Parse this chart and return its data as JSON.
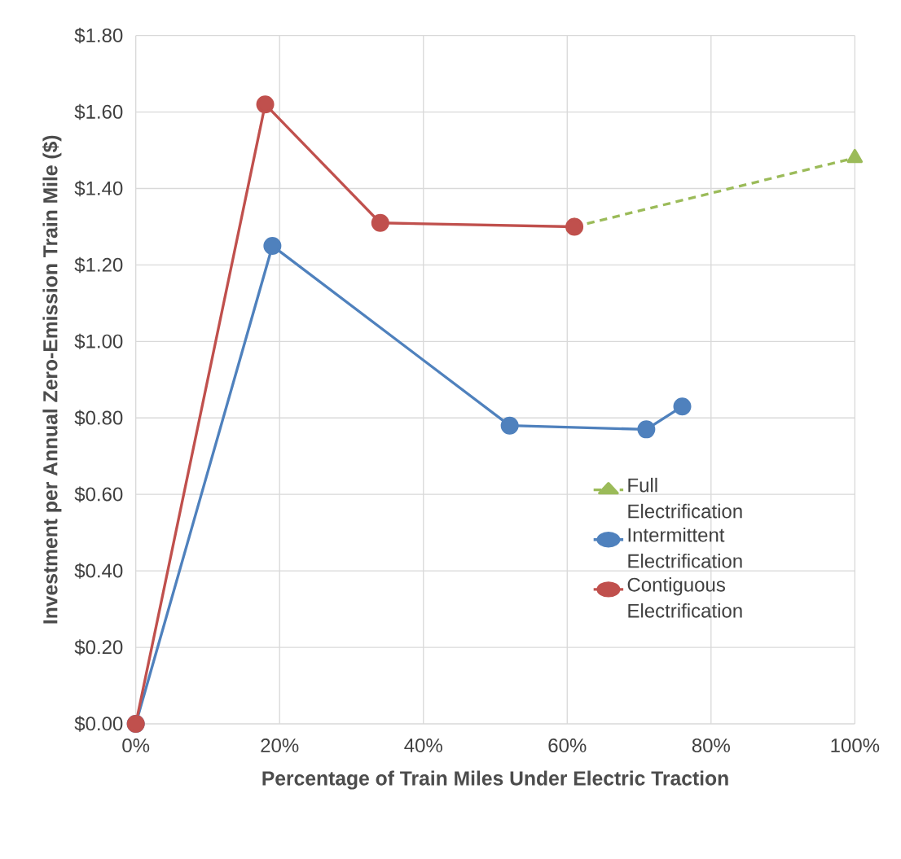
{
  "chart_data": {
    "type": "line",
    "xlabel": "Percentage of Train Miles Under Electric Traction",
    "ylabel": "Investment per Annual Zero-Emission Train Mile ($)",
    "xlim": [
      0,
      100
    ],
    "xticks": [
      {
        "value": 0,
        "label": "0%"
      },
      {
        "value": 20,
        "label": "20%"
      },
      {
        "value": 40,
        "label": "40%"
      },
      {
        "value": 60,
        "label": "60%"
      },
      {
        "value": 80,
        "label": "80%"
      },
      {
        "value": 100,
        "label": "100%"
      }
    ],
    "ylim": [
      0,
      1.8
    ],
    "yticks": [
      {
        "value": 0,
        "label": "$0.00"
      },
      {
        "value": 0.2,
        "label": "$0.20"
      },
      {
        "value": 0.4,
        "label": "$0.40"
      },
      {
        "value": 0.6,
        "label": "$0.60"
      },
      {
        "value": 0.8,
        "label": "$0.80"
      },
      {
        "value": 1.0,
        "label": "$1.00"
      },
      {
        "value": 1.2,
        "label": "$1.20"
      },
      {
        "value": 1.4,
        "label": "$1.40"
      },
      {
        "value": 1.6,
        "label": "$1.60"
      },
      {
        "value": 1.8,
        "label": "$1.80"
      }
    ],
    "grid": true,
    "legend": "right",
    "series": [
      {
        "name": "Full Electrification",
        "color": "#9bbb59",
        "marker": "triangle",
        "line_style": "dashed",
        "x": [
          61,
          100
        ],
        "values": [
          1.3,
          1.48
        ]
      },
      {
        "name": "Intermittent Electrification",
        "color": "#4f81bd",
        "marker": "circle",
        "line_style": "solid",
        "x": [
          0,
          19,
          52,
          71,
          76
        ],
        "values": [
          0,
          1.25,
          0.78,
          0.77,
          0.83
        ]
      },
      {
        "name": "Contiguous Electrification",
        "color": "#c0504d",
        "marker": "circle",
        "line_style": "solid",
        "x": [
          0,
          18,
          34,
          61
        ],
        "values": [
          0,
          1.62,
          1.31,
          1.3
        ]
      }
    ]
  }
}
